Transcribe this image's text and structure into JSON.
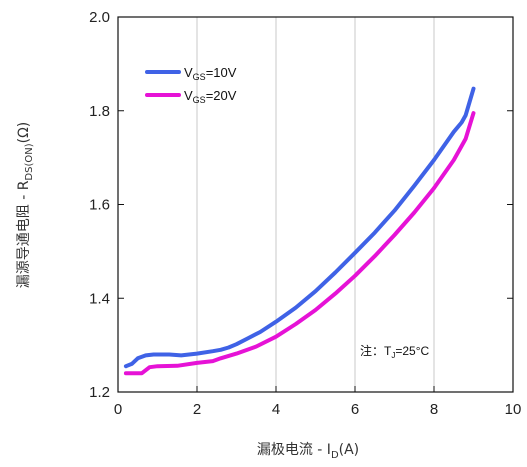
{
  "chart_data": {
    "type": "line",
    "xlabel": {
      "main": "漏极电流 - I",
      "sub": "D",
      "suffix": "(A)"
    },
    "ylabel": {
      "main": "漏源导通电阻 - R",
      "sub": "DS(ON)",
      "suffix": "(Ω)"
    },
    "xlim": [
      0,
      10
    ],
    "ylim": [
      1.2,
      2.0
    ],
    "x_ticks": [
      "0",
      "2",
      "4",
      "6",
      "8",
      "10"
    ],
    "y_ticks": [
      "1.2",
      "1.4",
      "1.6",
      "1.8",
      "2.0"
    ],
    "grid": "vertical",
    "legend": "top-left",
    "series": [
      {
        "name": {
          "main": "V",
          "sub": "GS",
          "suffix": "=10V"
        },
        "color": "#3f62e6",
        "points": [
          [
            0.2,
            1.255
          ],
          [
            0.35,
            1.26
          ],
          [
            0.5,
            1.272
          ],
          [
            0.7,
            1.278
          ],
          [
            0.9,
            1.28
          ],
          [
            1.1,
            1.28
          ],
          [
            1.3,
            1.28
          ],
          [
            1.6,
            1.278
          ],
          [
            2.0,
            1.282
          ],
          [
            2.4,
            1.287
          ],
          [
            2.6,
            1.29
          ],
          [
            2.8,
            1.295
          ],
          [
            3.0,
            1.302
          ],
          [
            3.3,
            1.315
          ],
          [
            3.6,
            1.328
          ],
          [
            4.0,
            1.35
          ],
          [
            4.5,
            1.38
          ],
          [
            5.0,
            1.415
          ],
          [
            5.5,
            1.455
          ],
          [
            6.0,
            1.497
          ],
          [
            6.5,
            1.54
          ],
          [
            7.0,
            1.587
          ],
          [
            7.5,
            1.64
          ],
          [
            8.0,
            1.695
          ],
          [
            8.5,
            1.755
          ],
          [
            8.7,
            1.775
          ],
          [
            8.8,
            1.79
          ],
          [
            9.0,
            1.847
          ]
        ]
      },
      {
        "name": {
          "main": "V",
          "sub": "GS",
          "suffix": "=20V"
        },
        "color": "#e612d6",
        "points": [
          [
            0.2,
            1.24
          ],
          [
            0.6,
            1.24
          ],
          [
            0.8,
            1.253
          ],
          [
            1.0,
            1.255
          ],
          [
            1.5,
            1.256
          ],
          [
            2.0,
            1.262
          ],
          [
            2.4,
            1.266
          ],
          [
            2.6,
            1.272
          ],
          [
            3.0,
            1.282
          ],
          [
            3.5,
            1.297
          ],
          [
            4.0,
            1.318
          ],
          [
            4.5,
            1.345
          ],
          [
            5.0,
            1.375
          ],
          [
            5.5,
            1.41
          ],
          [
            6.0,
            1.448
          ],
          [
            6.5,
            1.49
          ],
          [
            7.0,
            1.535
          ],
          [
            7.5,
            1.583
          ],
          [
            8.0,
            1.635
          ],
          [
            8.5,
            1.695
          ],
          [
            8.8,
            1.74
          ],
          [
            9.0,
            1.795
          ]
        ]
      }
    ],
    "annotation": {
      "main": "注：T",
      "sub": "J",
      "suffix": "=25°C"
    }
  }
}
